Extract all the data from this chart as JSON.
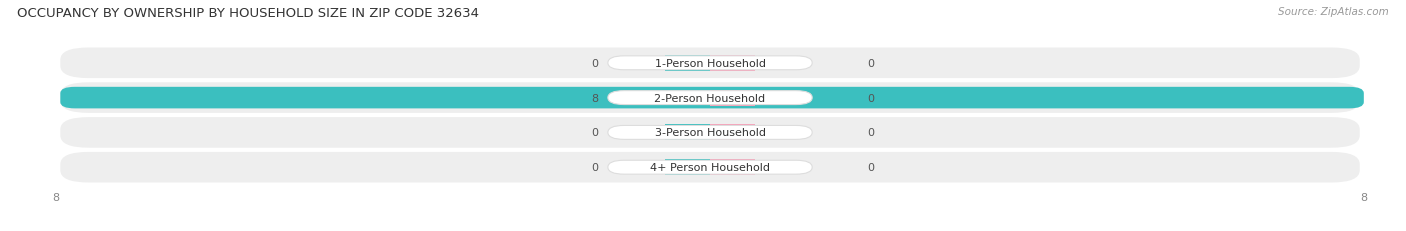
{
  "title": "OCCUPANCY BY OWNERSHIP BY HOUSEHOLD SIZE IN ZIP CODE 32634",
  "source": "Source: ZipAtlas.com",
  "categories": [
    "1-Person Household",
    "2-Person Household",
    "3-Person Household",
    "4+ Person Household"
  ],
  "owner_values": [
    0,
    8,
    0,
    0
  ],
  "renter_values": [
    0,
    0,
    0,
    0
  ],
  "owner_color": "#3bbfbf",
  "renter_color": "#f5a0b8",
  "label_bg_color": "#ffffff",
  "xlim": [
    -8,
    8
  ],
  "title_fontsize": 9.5,
  "source_fontsize": 7.5,
  "tick_fontsize": 8,
  "label_fontsize": 8,
  "value_fontsize": 8,
  "fig_bg_color": "#ffffff",
  "bar_height": 0.62,
  "stub_size": 0.55,
  "bar_row_bg": "#eeeeee",
  "row_gap_color": "#ffffff"
}
